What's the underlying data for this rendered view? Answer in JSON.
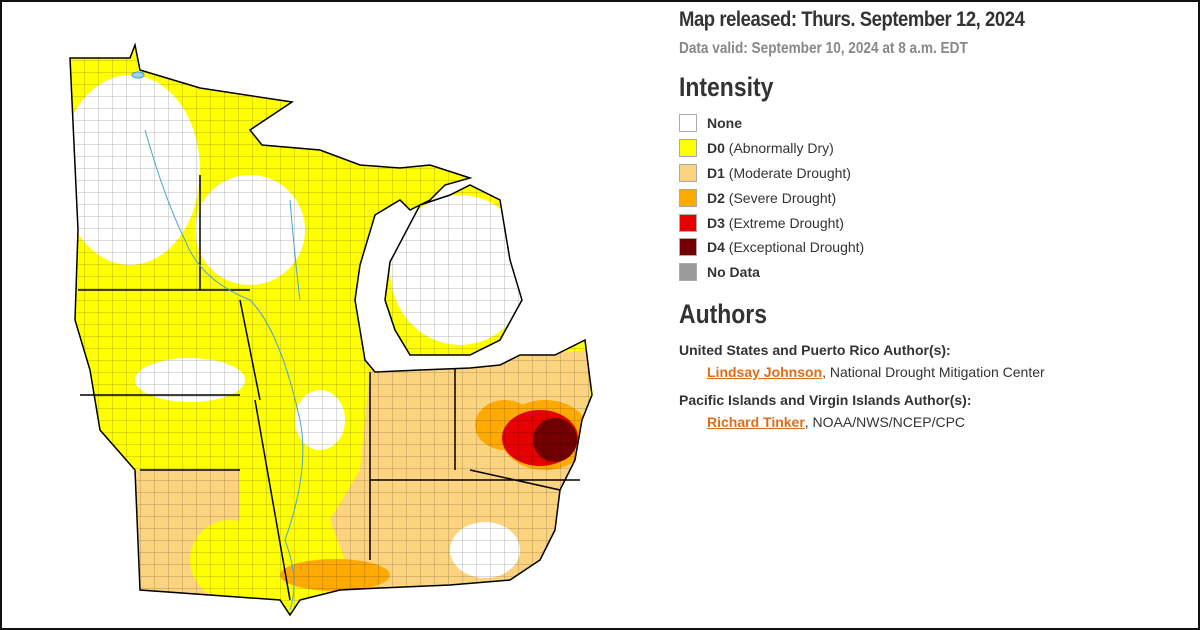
{
  "header": {
    "title": "Map released: Thurs. September 12, 2024",
    "subtitle": "Data valid: September 10, 2024 at 8 a.m. EDT"
  },
  "legend": {
    "title": "Intensity",
    "items": [
      {
        "code": "None",
        "color": "#ffffff"
      },
      {
        "code": "D0",
        "label": "(Abnormally Dry)",
        "color": "#ffff00"
      },
      {
        "code": "D1",
        "label": "(Moderate Drought)",
        "color": "#fcd37f"
      },
      {
        "code": "D2",
        "label": "(Severe Drought)",
        "color": "#ffaa00"
      },
      {
        "code": "D3",
        "label": "(Extreme Drought)",
        "color": "#e60000"
      },
      {
        "code": "D4",
        "label": "(Exceptional Drought)",
        "color": "#730000"
      },
      {
        "code": "No Data",
        "color": "#9b9b9b"
      }
    ]
  },
  "authors": {
    "title": "Authors",
    "groups": [
      {
        "heading": "United States and Puerto Rico Author(s):",
        "name": "Lindsay Johnson",
        "suffix": ", National Drought Mitigation Center"
      },
      {
        "heading": "Pacific Islands and Virgin Islands Author(s):",
        "name": "Richard Tinker",
        "suffix": ", NOAA/NWS/NCEP/CPC"
      }
    ]
  }
}
